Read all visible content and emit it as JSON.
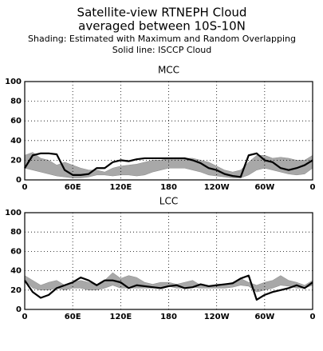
{
  "header": {
    "lines": [
      "Satellite-view RTNEPH Cloud",
      "averaged between 10S-10N",
      "Shading: Estimated with Maximum and Random Overlapping",
      "Solid line: ISCCP  Cloud"
    ]
  },
  "chart_data": [
    {
      "type": "line",
      "title": "MCC",
      "x": [
        0,
        10,
        20,
        30,
        40,
        50,
        60,
        70,
        80,
        90,
        100,
        110,
        120,
        130,
        140,
        150,
        160,
        170,
        180,
        190,
        200,
        210,
        220,
        230,
        240,
        250,
        260,
        270,
        280,
        290,
        300,
        310,
        320,
        330,
        340,
        350,
        360
      ],
      "xlim": [
        0,
        360
      ],
      "xticks": [
        0,
        {
          "value": 60,
          "label": "60E"
        },
        {
          "value": 120,
          "label": "120E"
        },
        180,
        {
          "value": 240,
          "label": "120W"
        },
        {
          "value": 300,
          "label": "60W"
        },
        {
          "value": 360,
          "label": "0"
        }
      ],
      "ylim": [
        0,
        100
      ],
      "yticks": [
        0,
        20,
        40,
        60,
        80,
        100
      ],
      "grid": true,
      "band": {
        "color": "#a8a8a8",
        "high": [
          25,
          28,
          22,
          20,
          15,
          18,
          15,
          12,
          10,
          10,
          8,
          12,
          14,
          15,
          16,
          18,
          20,
          20,
          22,
          22,
          22,
          22,
          20,
          18,
          14,
          10,
          8,
          10,
          18,
          25,
          25,
          22,
          23,
          22,
          20,
          20,
          25
        ],
        "low": [
          12,
          10,
          8,
          6,
          4,
          3,
          2,
          2,
          3,
          5,
          5,
          4,
          5,
          5,
          4,
          5,
          8,
          10,
          12,
          12,
          12,
          10,
          8,
          5,
          4,
          3,
          2,
          2,
          5,
          10,
          12,
          10,
          8,
          6,
          5,
          6,
          12
        ]
      },
      "line": {
        "color": "#000000",
        "values": [
          12,
          25,
          27,
          27,
          26,
          10,
          5,
          5,
          6,
          12,
          12,
          18,
          20,
          19,
          21,
          22,
          22,
          22,
          22,
          22,
          22,
          20,
          17,
          12,
          10,
          6,
          4,
          3,
          25,
          27,
          20,
          18,
          12,
          10,
          12,
          15,
          20
        ]
      }
    },
    {
      "type": "line",
      "title": "LCC",
      "x": [
        0,
        10,
        20,
        30,
        40,
        50,
        60,
        70,
        80,
        90,
        100,
        110,
        120,
        130,
        140,
        150,
        160,
        170,
        180,
        190,
        200,
        210,
        220,
        230,
        240,
        250,
        260,
        270,
        280,
        290,
        300,
        310,
        320,
        330,
        340,
        350,
        360
      ],
      "xlim": [
        0,
        360
      ],
      "xticks": [
        0,
        {
          "value": 60,
          "label": "60E"
        },
        {
          "value": 120,
          "label": "120E"
        },
        180,
        {
          "value": 240,
          "label": "120W"
        },
        {
          "value": 300,
          "label": "60W"
        },
        {
          "value": 360,
          "label": "0"
        }
      ],
      "ylim": [
        0,
        100
      ],
      "yticks": [
        0,
        20,
        40,
        60,
        80,
        100
      ],
      "grid": true,
      "band": {
        "color": "#a8a8a8",
        "high": [
          35,
          30,
          25,
          28,
          30,
          25,
          28,
          30,
          28,
          25,
          30,
          38,
          32,
          35,
          33,
          28,
          26,
          28,
          28,
          26,
          28,
          30,
          25,
          24,
          26,
          26,
          28,
          32,
          28,
          25,
          28,
          30,
          35,
          30,
          28,
          25,
          30
        ],
        "low": [
          30,
          22,
          20,
          20,
          22,
          20,
          22,
          22,
          20,
          20,
          22,
          25,
          22,
          22,
          22,
          22,
          22,
          22,
          24,
          22,
          22,
          23,
          22,
          22,
          22,
          22,
          23,
          25,
          24,
          18,
          20,
          22,
          25,
          24,
          22,
          22,
          25
        ]
      },
      "line": {
        "color": "#000000",
        "values": [
          30,
          18,
          12,
          15,
          22,
          25,
          28,
          33,
          30,
          25,
          30,
          30,
          28,
          22,
          25,
          24,
          23,
          22,
          24,
          25,
          22,
          23,
          26,
          24,
          25,
          26,
          27,
          32,
          35,
          10,
          15,
          18,
          20,
          22,
          25,
          22,
          28
        ]
      }
    }
  ]
}
